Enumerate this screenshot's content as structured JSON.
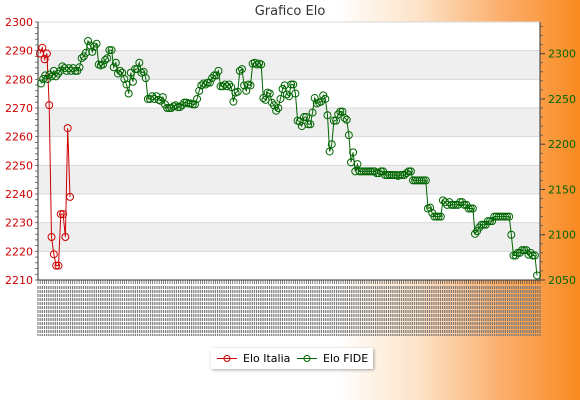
{
  "chart_data": {
    "type": "line",
    "title": "Grafico Elo",
    "left_axis": {
      "ticks": [
        2210,
        2220,
        2230,
        2240,
        2250,
        2260,
        2270,
        2280,
        2290,
        2300
      ],
      "range": [
        2210,
        2300
      ],
      "color": "#cc0000"
    },
    "right_axis": {
      "ticks": [
        2050,
        2100,
        2150,
        2200,
        2250,
        2300
      ],
      "range": [
        2050,
        2335
      ],
      "color": "#006600"
    },
    "grid": true,
    "legend_position": "bottom-center",
    "series": [
      {
        "name": "Elo Italia",
        "axis": "left",
        "color": "#cc0000",
        "values": [
          2289,
          2291,
          2287,
          2289,
          2271,
          2225,
          2219,
          2215,
          2215,
          2233,
          2233,
          2225,
          2263,
          2239
        ]
      },
      {
        "name": "Elo FIDE",
        "axis": "right",
        "color": "#006600",
        "values": [
          2267,
          2272,
          2276,
          2272,
          2277,
          2275,
          2281,
          2275,
          2278,
          2281,
          2286,
          2284,
          2281,
          2284,
          2281,
          2284,
          2281,
          2281,
          2285,
          2295,
          2297,
          2301,
          2314,
          2309,
          2302,
          2308,
          2311,
          2288,
          2287,
          2288,
          2293,
          2295,
          2304,
          2304,
          2285,
          2290,
          2278,
          2281,
          2279,
          2272,
          2266,
          2256,
          2279,
          2269,
          2283,
          2283,
          2290,
          2279,
          2280,
          2273,
          2250,
          2250,
          2253,
          2250,
          2253,
          2249,
          2248,
          2252,
          2244,
          2240,
          2240,
          2240,
          2242,
          2243,
          2241,
          2241,
          2243,
          2246,
          2246,
          2245,
          2245,
          2244,
          2244,
          2250,
          2259,
          2265,
          2267,
          2266,
          2268,
          2268,
          2273,
          2276,
          2276,
          2281,
          2264,
          2264,
          2266,
          2264,
          2266,
          2263,
          2247,
          2257,
          2258,
          2281,
          2283,
          2265,
          2259,
          2266,
          2265,
          2289,
          2290,
          2288,
          2289,
          2288,
          2251,
          2249,
          2257,
          2256,
          2246,
          2243,
          2237,
          2240,
          2250,
          2261,
          2265,
          2255,
          2253,
          2266,
          2266,
          2256,
          2226,
          2225,
          2220,
          2230,
          2230,
          2222,
          2222,
          2235,
          2251,
          2245,
          2246,
          2247,
          2254,
          2250,
          2232,
          2192,
          2200,
          2226,
          2226,
          2233,
          2236,
          2236,
          2229,
          2227,
          2210,
          2180,
          2191,
          2170,
          2178,
          2170,
          2170,
          2170,
          2170,
          2170,
          2170,
          2170,
          2170,
          2168,
          2168,
          2170,
          2170,
          2166,
          2166,
          2166,
          2166,
          2166,
          2166,
          2165,
          2166,
          2166,
          2166,
          2168,
          2170,
          2170,
          2160,
          2160,
          2160,
          2160,
          2160,
          2160,
          2160,
          2129,
          2130,
          2124,
          2120,
          2120,
          2120,
          2120,
          2138,
          2136,
          2133,
          2136,
          2133,
          2133,
          2133,
          2133,
          2136,
          2136,
          2133,
          2133,
          2129,
          2129,
          2129,
          2101,
          2104,
          2108,
          2111,
          2111,
          2111,
          2115,
          2115,
          2115,
          2120,
          2120,
          2120,
          2120,
          2120,
          2120,
          2120,
          2120,
          2100,
          2077,
          2077,
          2080,
          2080,
          2083,
          2083,
          2083,
          2078,
          2080,
          2077,
          2077,
          2055
        ]
      }
    ]
  }
}
